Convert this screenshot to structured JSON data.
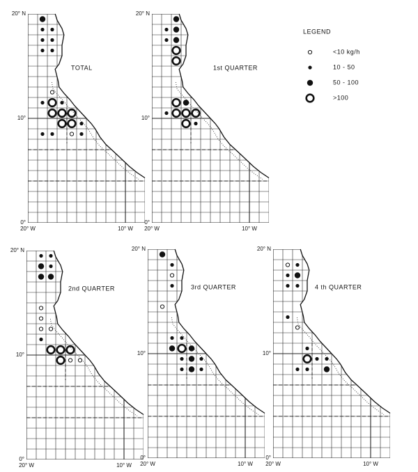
{
  "legend": {
    "title": "LEGEND",
    "items": [
      "<10 kg/h",
      "10 - 50",
      "50 - 100",
      ">100"
    ]
  },
  "lat_ticks": [
    {
      "value": 20,
      "label": "20° N"
    },
    {
      "value": 10,
      "label": "10°"
    },
    {
      "value": 0,
      "label": "0°"
    }
  ],
  "lon_ticks": [
    {
      "value": 20,
      "label": "20° W"
    },
    {
      "value": 10,
      "label": "10° W"
    }
  ],
  "panels": [
    {
      "label": "TOTAL",
      "catches": [
        {
          "lon_w": 18.5,
          "lat": 19.5,
          "size_class": 2
        },
        {
          "lon_w": 18.5,
          "lat": 18.5,
          "size_class": 1
        },
        {
          "lon_w": 17.5,
          "lat": 18.5,
          "size_class": 1
        },
        {
          "lon_w": 18.5,
          "lat": 17.5,
          "size_class": 1
        },
        {
          "lon_w": 17.5,
          "lat": 17.5,
          "size_class": 1
        },
        {
          "lon_w": 18.5,
          "lat": 16.5,
          "size_class": 1
        },
        {
          "lon_w": 17.5,
          "lat": 16.5,
          "size_class": 1
        },
        {
          "lon_w": 17.5,
          "lat": 12.5,
          "size_class": 0
        },
        {
          "lon_w": 18.5,
          "lat": 11.5,
          "size_class": 1
        },
        {
          "lon_w": 17.5,
          "lat": 11.5,
          "size_class": 3
        },
        {
          "lon_w": 16.5,
          "lat": 11.5,
          "size_class": 1
        },
        {
          "lon_w": 17.5,
          "lat": 10.5,
          "size_class": 3
        },
        {
          "lon_w": 16.5,
          "lat": 10.5,
          "size_class": 3
        },
        {
          "lon_w": 15.5,
          "lat": 10.5,
          "size_class": 3
        },
        {
          "lon_w": 16.5,
          "lat": 9.5,
          "size_class": 3
        },
        {
          "lon_w": 15.5,
          "lat": 9.5,
          "size_class": 3
        },
        {
          "lon_w": 14.5,
          "lat": 9.5,
          "size_class": 1
        },
        {
          "lon_w": 18.5,
          "lat": 8.5,
          "size_class": 1
        },
        {
          "lon_w": 17.5,
          "lat": 8.5,
          "size_class": 1
        },
        {
          "lon_w": 15.5,
          "lat": 8.5,
          "size_class": 0
        },
        {
          "lon_w": 14.5,
          "lat": 8.5,
          "size_class": 1
        }
      ]
    },
    {
      "label": "1st QUARTER",
      "catches": [
        {
          "lon_w": 17.5,
          "lat": 19.5,
          "size_class": 2
        },
        {
          "lon_w": 18.5,
          "lat": 18.5,
          "size_class": 1
        },
        {
          "lon_w": 17.5,
          "lat": 18.5,
          "size_class": 2
        },
        {
          "lon_w": 18.5,
          "lat": 17.5,
          "size_class": 1
        },
        {
          "lon_w": 17.5,
          "lat": 17.5,
          "size_class": 2
        },
        {
          "lon_w": 17.5,
          "lat": 16.5,
          "size_class": 3
        },
        {
          "lon_w": 17.5,
          "lat": 15.5,
          "size_class": 3
        },
        {
          "lon_w": 17.5,
          "lat": 11.5,
          "size_class": 3
        },
        {
          "lon_w": 16.5,
          "lat": 11.5,
          "size_class": 2
        },
        {
          "lon_w": 17.5,
          "lat": 10.5,
          "size_class": 3
        },
        {
          "lon_w": 16.5,
          "lat": 10.5,
          "size_class": 3
        },
        {
          "lon_w": 15.5,
          "lat": 10.5,
          "size_class": 3
        },
        {
          "lon_w": 16.5,
          "lat": 9.5,
          "size_class": 3
        },
        {
          "lon_w": 18.5,
          "lat": 10.5,
          "size_class": 1
        },
        {
          "lon_w": 15.5,
          "lat": 9.5,
          "size_class": 1
        }
      ]
    },
    {
      "label": "2nd QUARTER",
      "catches": [
        {
          "lon_w": 18.5,
          "lat": 19.5,
          "size_class": 1
        },
        {
          "lon_w": 17.5,
          "lat": 19.5,
          "size_class": 1
        },
        {
          "lon_w": 18.5,
          "lat": 18.5,
          "size_class": 2
        },
        {
          "lon_w": 17.5,
          "lat": 18.5,
          "size_class": 1
        },
        {
          "lon_w": 18.5,
          "lat": 17.5,
          "size_class": 2
        },
        {
          "lon_w": 17.5,
          "lat": 17.5,
          "size_class": 2
        },
        {
          "lon_w": 18.5,
          "lat": 14.5,
          "size_class": 0
        },
        {
          "lon_w": 18.5,
          "lat": 13.5,
          "size_class": 0
        },
        {
          "lon_w": 18.5,
          "lat": 12.5,
          "size_class": 0
        },
        {
          "lon_w": 17.5,
          "lat": 12.5,
          "size_class": 0
        },
        {
          "lon_w": 18.5,
          "lat": 11.5,
          "size_class": 1
        },
        {
          "lon_w": 17.5,
          "lat": 10.5,
          "size_class": 3
        },
        {
          "lon_w": 16.5,
          "lat": 10.5,
          "size_class": 3
        },
        {
          "lon_w": 15.5,
          "lat": 10.5,
          "size_class": 3
        },
        {
          "lon_w": 16.5,
          "lat": 9.5,
          "size_class": 3
        },
        {
          "lon_w": 15.5,
          "lat": 9.5,
          "size_class": 0
        },
        {
          "lon_w": 14.5,
          "lat": 9.5,
          "size_class": 0
        }
      ]
    },
    {
      "label": "3rd QUARTER",
      "catches": [
        {
          "lon_w": 18.5,
          "lat": 19.5,
          "size_class": 2
        },
        {
          "lon_w": 17.5,
          "lat": 18.5,
          "size_class": 1
        },
        {
          "lon_w": 17.5,
          "lat": 17.5,
          "size_class": 0
        },
        {
          "lon_w": 17.5,
          "lat": 16.5,
          "size_class": 1
        },
        {
          "lon_w": 18.5,
          "lat": 14.5,
          "size_class": 0
        },
        {
          "lon_w": 17.5,
          "lat": 11.5,
          "size_class": 1
        },
        {
          "lon_w": 16.5,
          "lat": 11.5,
          "size_class": 1
        },
        {
          "lon_w": 17.5,
          "lat": 10.5,
          "size_class": 2
        },
        {
          "lon_w": 16.5,
          "lat": 10.5,
          "size_class": 3
        },
        {
          "lon_w": 15.5,
          "lat": 10.5,
          "size_class": 2
        },
        {
          "lon_w": 15.5,
          "lat": 9.5,
          "size_class": 2
        },
        {
          "lon_w": 16.5,
          "lat": 9.5,
          "size_class": 1
        },
        {
          "lon_w": 14.5,
          "lat": 9.5,
          "size_class": 1
        },
        {
          "lon_w": 16.5,
          "lat": 8.5,
          "size_class": 1
        },
        {
          "lon_w": 15.5,
          "lat": 8.5,
          "size_class": 2
        },
        {
          "lon_w": 14.5,
          "lat": 8.5,
          "size_class": 1
        }
      ]
    },
    {
      "label": "4 th QUARTER",
      "catches": [
        {
          "lon_w": 18.5,
          "lat": 18.5,
          "size_class": 0
        },
        {
          "lon_w": 17.5,
          "lat": 18.5,
          "size_class": 1
        },
        {
          "lon_w": 18.5,
          "lat": 17.5,
          "size_class": 1
        },
        {
          "lon_w": 17.5,
          "lat": 17.5,
          "size_class": 2
        },
        {
          "lon_w": 18.5,
          "lat": 16.5,
          "size_class": 1
        },
        {
          "lon_w": 17.5,
          "lat": 16.5,
          "size_class": 1
        },
        {
          "lon_w": 18.5,
          "lat": 13.5,
          "size_class": 1
        },
        {
          "lon_w": 17.5,
          "lat": 12.5,
          "size_class": 0
        },
        {
          "lon_w": 16.5,
          "lat": 10.5,
          "size_class": 1
        },
        {
          "lon_w": 16.5,
          "lat": 9.5,
          "size_class": 3
        },
        {
          "lon_w": 15.5,
          "lat": 9.5,
          "size_class": 1
        },
        {
          "lon_w": 14.5,
          "lat": 9.5,
          "size_class": 1
        },
        {
          "lon_w": 17.5,
          "lat": 8.5,
          "size_class": 1
        },
        {
          "lon_w": 16.5,
          "lat": 8.5,
          "size_class": 1
        },
        {
          "lon_w": 14.5,
          "lat": 8.5,
          "size_class": 2
        }
      ]
    }
  ]
}
